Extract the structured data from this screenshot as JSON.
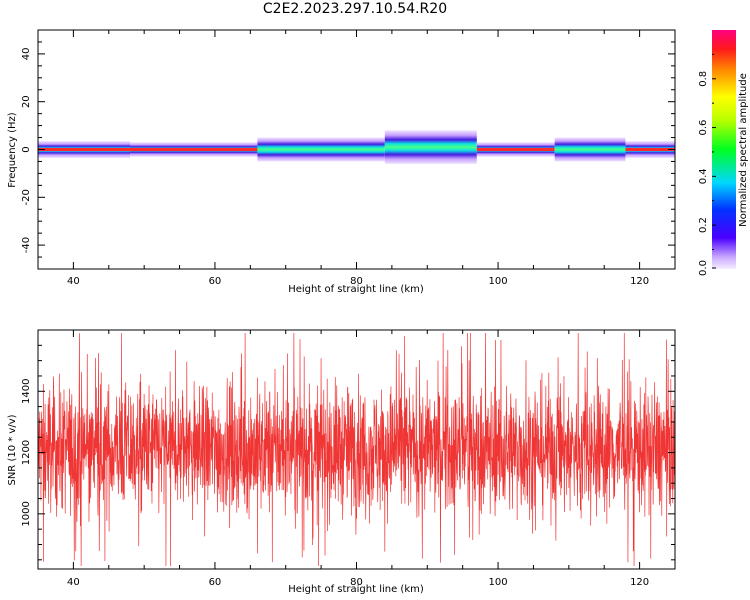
{
  "title": "C2E2.2023.297.10.54.R20",
  "colors": {
    "snr_line": "#f03535",
    "spectrum_core": "#ff2a2a",
    "spectrum_halo": "#c9a7ff",
    "spectrum_edge": "#3a10e0"
  },
  "chart_data": [
    {
      "type": "heatmap",
      "xlabel": "Height of straight line (km)",
      "ylabel": "Frequency (Hz)",
      "xlim": [
        35,
        125
      ],
      "ylim": [
        -50,
        50
      ],
      "x_ticks": [
        40,
        60,
        80,
        100,
        120
      ],
      "y_ticks": [
        -40,
        -20,
        0,
        20,
        40
      ],
      "grid": false,
      "colorbar": {
        "label": "Normalized spectral amplitude",
        "range": [
          0,
          1
        ],
        "ticks": [
          "0.0",
          "0.2",
          "0.4",
          "0.6",
          "0.8"
        ],
        "colormap": "rainbow (violet to magenta)"
      },
      "segments": [
        {
          "x": [
            35,
            48
          ],
          "center_hz": 0,
          "width_hz": 3.5,
          "peak": 0.9
        },
        {
          "x": [
            48,
            66
          ],
          "center_hz": 0,
          "width_hz": 3.0,
          "peak": 0.95
        },
        {
          "x": [
            66,
            84
          ],
          "center_hz": 0,
          "width_hz": 5.0,
          "peak": 0.6
        },
        {
          "x": [
            84,
            97
          ],
          "center_hz": 1,
          "width_hz": 7.0,
          "peak": 0.45
        },
        {
          "x": [
            97,
            108
          ],
          "center_hz": 0,
          "width_hz": 3.0,
          "peak": 0.95
        },
        {
          "x": [
            108,
            118
          ],
          "center_hz": 0,
          "width_hz": 5.0,
          "peak": 0.6
        },
        {
          "x": [
            118,
            125
          ],
          "center_hz": 0,
          "width_hz": 3.5,
          "peak": 0.9
        }
      ]
    },
    {
      "type": "line",
      "xlabel": "Height of straight line (km)",
      "ylabel": "SNR (10 * v/v)",
      "xlim": [
        35,
        125
      ],
      "ylim": [
        820,
        1600
      ],
      "x_ticks": [
        40,
        60,
        80,
        100,
        120
      ],
      "y_ticks": [
        1000,
        1200,
        1400
      ],
      "grid": false,
      "series": [
        {
          "mean": 1210,
          "spread": 120,
          "min": 830,
          "max": 1590
        }
      ]
    }
  ]
}
